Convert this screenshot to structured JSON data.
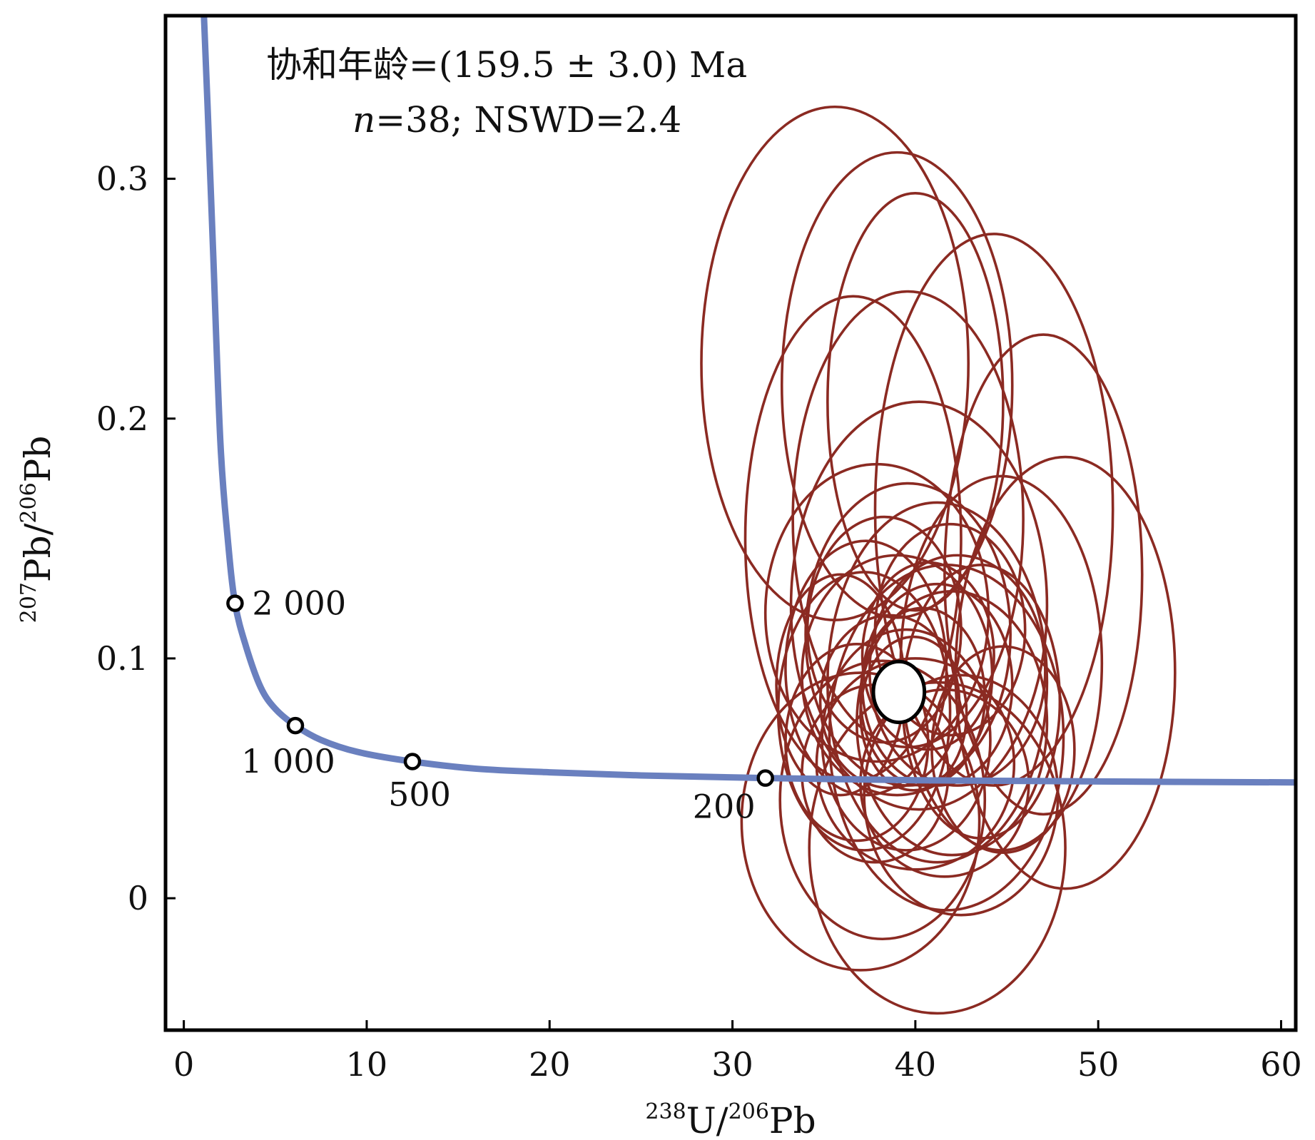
{
  "chart_data": {
    "type": "scatter",
    "subtype": "Tera-Wasserburg concordia with error ellipses",
    "annotation": {
      "line1_label": "协和年龄",
      "line1_value": "=(159.5 ± 3.0) Ma",
      "line2_n": "n",
      "line2_rest": "=38; NSWD=2.4"
    },
    "xlabel": {
      "sup1": "238",
      "base1": "U/",
      "sup2": "206",
      "base2": "Pb"
    },
    "ylabel": {
      "sup1": "207",
      "base1": "Pb/",
      "sup2": "206",
      "base2": "Pb"
    },
    "xlim": [
      -1,
      60.8
    ],
    "ylim": [
      -0.055,
      0.368
    ],
    "x_ticks": [
      0,
      10,
      20,
      30,
      40,
      50,
      60
    ],
    "x_tick_labels": [
      "0",
      "10",
      "20",
      "30",
      "40",
      "50",
      "60"
    ],
    "y_ticks": [
      0,
      0.1,
      0.2,
      0.3
    ],
    "y_tick_labels": [
      "0",
      "0.1",
      "0.2",
      "0.3"
    ],
    "grid": false,
    "concordia_color": "#6a80bf",
    "ellipse_color": "#8b2a22",
    "concordia_points": [
      {
        "x": 1.1,
        "y": 0.368
      },
      {
        "x": 1.3,
        "y": 0.33
      },
      {
        "x": 1.6,
        "y": 0.27
      },
      {
        "x": 2.0,
        "y": 0.19
      },
      {
        "x": 2.4,
        "y": 0.15
      },
      {
        "x": 2.8,
        "y": 0.123
      },
      {
        "x": 3.4,
        "y": 0.105
      },
      {
        "x": 4.2,
        "y": 0.088
      },
      {
        "x": 5.0,
        "y": 0.079
      },
      {
        "x": 6.1,
        "y": 0.072
      },
      {
        "x": 7.5,
        "y": 0.066
      },
      {
        "x": 9.5,
        "y": 0.061
      },
      {
        "x": 12.5,
        "y": 0.057
      },
      {
        "x": 16.0,
        "y": 0.054
      },
      {
        "x": 20.0,
        "y": 0.0525
      },
      {
        "x": 25.0,
        "y": 0.0512
      },
      {
        "x": 31.8,
        "y": 0.0501
      },
      {
        "x": 40.0,
        "y": 0.0492
      },
      {
        "x": 50.0,
        "y": 0.0487
      },
      {
        "x": 60.8,
        "y": 0.0483
      }
    ],
    "age_markers": [
      {
        "age": "2 000",
        "x": 2.8,
        "y": 0.123,
        "label_pos": "right"
      },
      {
        "age": "1 000",
        "x": 6.1,
        "y": 0.072,
        "label_pos": "below-left"
      },
      {
        "age": "500",
        "x": 12.5,
        "y": 0.057,
        "label_pos": "below"
      },
      {
        "age": "200",
        "x": 31.8,
        "y": 0.0501,
        "label_pos": "left"
      }
    ],
    "concordia_age_ellipse": {
      "x": 39.1,
      "y": 0.086,
      "rx": 0.85,
      "ry": 0.0085
    },
    "ellipses": [
      {
        "cx": 35.6,
        "cy": 0.223,
        "rx": 7.3,
        "ry": 0.107
      },
      {
        "cx": 39.0,
        "cy": 0.214,
        "rx": 6.3,
        "ry": 0.097
      },
      {
        "cx": 40.0,
        "cy": 0.207,
        "rx": 4.8,
        "ry": 0.087
      },
      {
        "cx": 44.3,
        "cy": 0.162,
        "rx": 6.5,
        "ry": 0.115
      },
      {
        "cx": 36.6,
        "cy": 0.15,
        "rx": 5.9,
        "ry": 0.101
      },
      {
        "cx": 39.6,
        "cy": 0.158,
        "rx": 6.3,
        "ry": 0.095
      },
      {
        "cx": 47.0,
        "cy": 0.135,
        "rx": 5.4,
        "ry": 0.1
      },
      {
        "cx": 40.2,
        "cy": 0.122,
        "rx": 7.0,
        "ry": 0.085
      },
      {
        "cx": 48.2,
        "cy": 0.094,
        "rx": 6.0,
        "ry": 0.09
      },
      {
        "cx": 44.7,
        "cy": 0.098,
        "rx": 5.5,
        "ry": 0.078
      },
      {
        "cx": 39.6,
        "cy": 0.11,
        "rx": 5.6,
        "ry": 0.063
      },
      {
        "cx": 41.2,
        "cy": 0.09,
        "rx": 6.0,
        "ry": 0.075
      },
      {
        "cx": 37.2,
        "cy": 0.078,
        "rx": 4.7,
        "ry": 0.058
      },
      {
        "cx": 41.7,
        "cy": 0.067,
        "rx": 6.4,
        "ry": 0.072
      },
      {
        "cx": 37.0,
        "cy": 0.032,
        "rx": 6.5,
        "ry": 0.062
      },
      {
        "cx": 41.2,
        "cy": 0.021,
        "rx": 7.0,
        "ry": 0.069
      },
      {
        "cx": 38.2,
        "cy": 0.041,
        "rx": 5.6,
        "ry": 0.058
      },
      {
        "cx": 40.0,
        "cy": 0.056,
        "rx": 5.4,
        "ry": 0.044
      },
      {
        "cx": 41.2,
        "cy": 0.089,
        "rx": 4.1,
        "ry": 0.042
      },
      {
        "cx": 40.4,
        "cy": 0.084,
        "rx": 3.4,
        "ry": 0.037
      },
      {
        "cx": 38.6,
        "cy": 0.082,
        "rx": 3.8,
        "ry": 0.036
      },
      {
        "cx": 39.0,
        "cy": 0.093,
        "rx": 5.2,
        "ry": 0.05
      },
      {
        "cx": 42.3,
        "cy": 0.095,
        "rx": 4.8,
        "ry": 0.048
      },
      {
        "cx": 37.3,
        "cy": 0.096,
        "rx": 4.4,
        "ry": 0.053
      },
      {
        "cx": 39.5,
        "cy": 0.066,
        "rx": 4.6,
        "ry": 0.046
      },
      {
        "cx": 42.0,
        "cy": 0.073,
        "rx": 5.2,
        "ry": 0.055
      },
      {
        "cx": 36.8,
        "cy": 0.065,
        "rx": 3.9,
        "ry": 0.041
      },
      {
        "cx": 40.7,
        "cy": 0.101,
        "rx": 3.6,
        "ry": 0.039
      },
      {
        "cx": 43.6,
        "cy": 0.082,
        "rx": 4.3,
        "ry": 0.057
      },
      {
        "cx": 35.9,
        "cy": 0.089,
        "rx": 3.5,
        "ry": 0.046
      },
      {
        "cx": 38.3,
        "cy": 0.112,
        "rx": 4.2,
        "ry": 0.047
      },
      {
        "cx": 41.9,
        "cy": 0.112,
        "rx": 4.1,
        "ry": 0.044
      },
      {
        "cx": 37.8,
        "cy": 0.052,
        "rx": 4.0,
        "ry": 0.037
      },
      {
        "cx": 41.6,
        "cy": 0.048,
        "rx": 4.6,
        "ry": 0.039
      },
      {
        "cx": 44.8,
        "cy": 0.062,
        "rx": 3.9,
        "ry": 0.043
      },
      {
        "cx": 39.9,
        "cy": 0.077,
        "rx": 2.9,
        "ry": 0.032
      },
      {
        "cx": 37.9,
        "cy": 0.119,
        "rx": 6.1,
        "ry": 0.062
      },
      {
        "cx": 42.5,
        "cy": 0.043,
        "rx": 5.3,
        "ry": 0.05
      }
    ]
  }
}
